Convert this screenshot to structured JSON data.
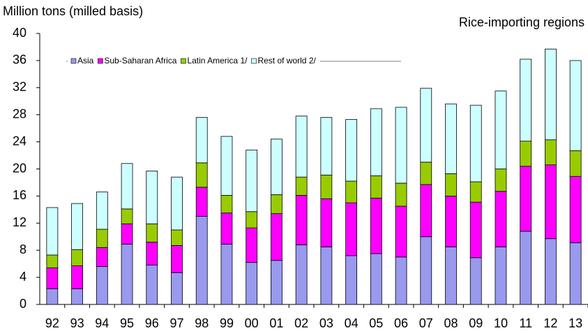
{
  "chart_data": {
    "type": "stacked_bar",
    "y_label": "Million tons (milled basis)",
    "subtitle": "Rice-importing regions",
    "categories": [
      "92",
      "93",
      "94",
      "95",
      "96",
      "97",
      "98",
      "99",
      "00",
      "01",
      "02",
      "03",
      "04",
      "05",
      "06",
      "07",
      "08",
      "09",
      "10",
      "11",
      "12",
      "13"
    ],
    "series": [
      {
        "name": "Asia",
        "color": "#9999ee",
        "values": [
          2.3,
          2.3,
          5.6,
          8.9,
          5.8,
          4.7,
          13.0,
          8.9,
          6.2,
          6.5,
          8.8,
          8.5,
          7.2,
          7.5,
          7.0,
          10.0,
          8.5,
          6.9,
          8.5,
          10.8,
          9.7,
          9.1
        ]
      },
      {
        "name": "Sub-Saharan Africa",
        "color": "#ff00ff",
        "values": [
          3.1,
          3.4,
          2.8,
          3.0,
          3.4,
          4.0,
          4.3,
          4.6,
          5.1,
          6.9,
          7.3,
          7.1,
          7.8,
          8.2,
          7.5,
          7.7,
          7.5,
          8.2,
          8.2,
          9.6,
          10.9,
          9.8
        ]
      },
      {
        "name": "Latin America 1/",
        "color": "#99cc00",
        "values": [
          1.9,
          2.4,
          2.7,
          2.2,
          2.7,
          2.3,
          3.6,
          2.6,
          2.4,
          2.8,
          2.7,
          3.5,
          3.2,
          3.3,
          3.4,
          3.3,
          3.3,
          3.0,
          3.3,
          3.7,
          3.7,
          3.8
        ]
      },
      {
        "name": "Rest of world 2/",
        "color": "#ccffff",
        "values": [
          7.0,
          6.8,
          5.5,
          6.7,
          7.8,
          7.8,
          6.7,
          8.7,
          9.1,
          8.2,
          9.0,
          8.5,
          9.1,
          9.9,
          11.2,
          10.9,
          10.3,
          11.3,
          11.5,
          12.1,
          13.4,
          13.3
        ]
      }
    ],
    "ylim": [
      0,
      40
    ],
    "yticks": [
      0,
      4,
      8,
      12,
      16,
      20,
      24,
      28,
      32,
      36,
      40
    ],
    "grid": false
  }
}
